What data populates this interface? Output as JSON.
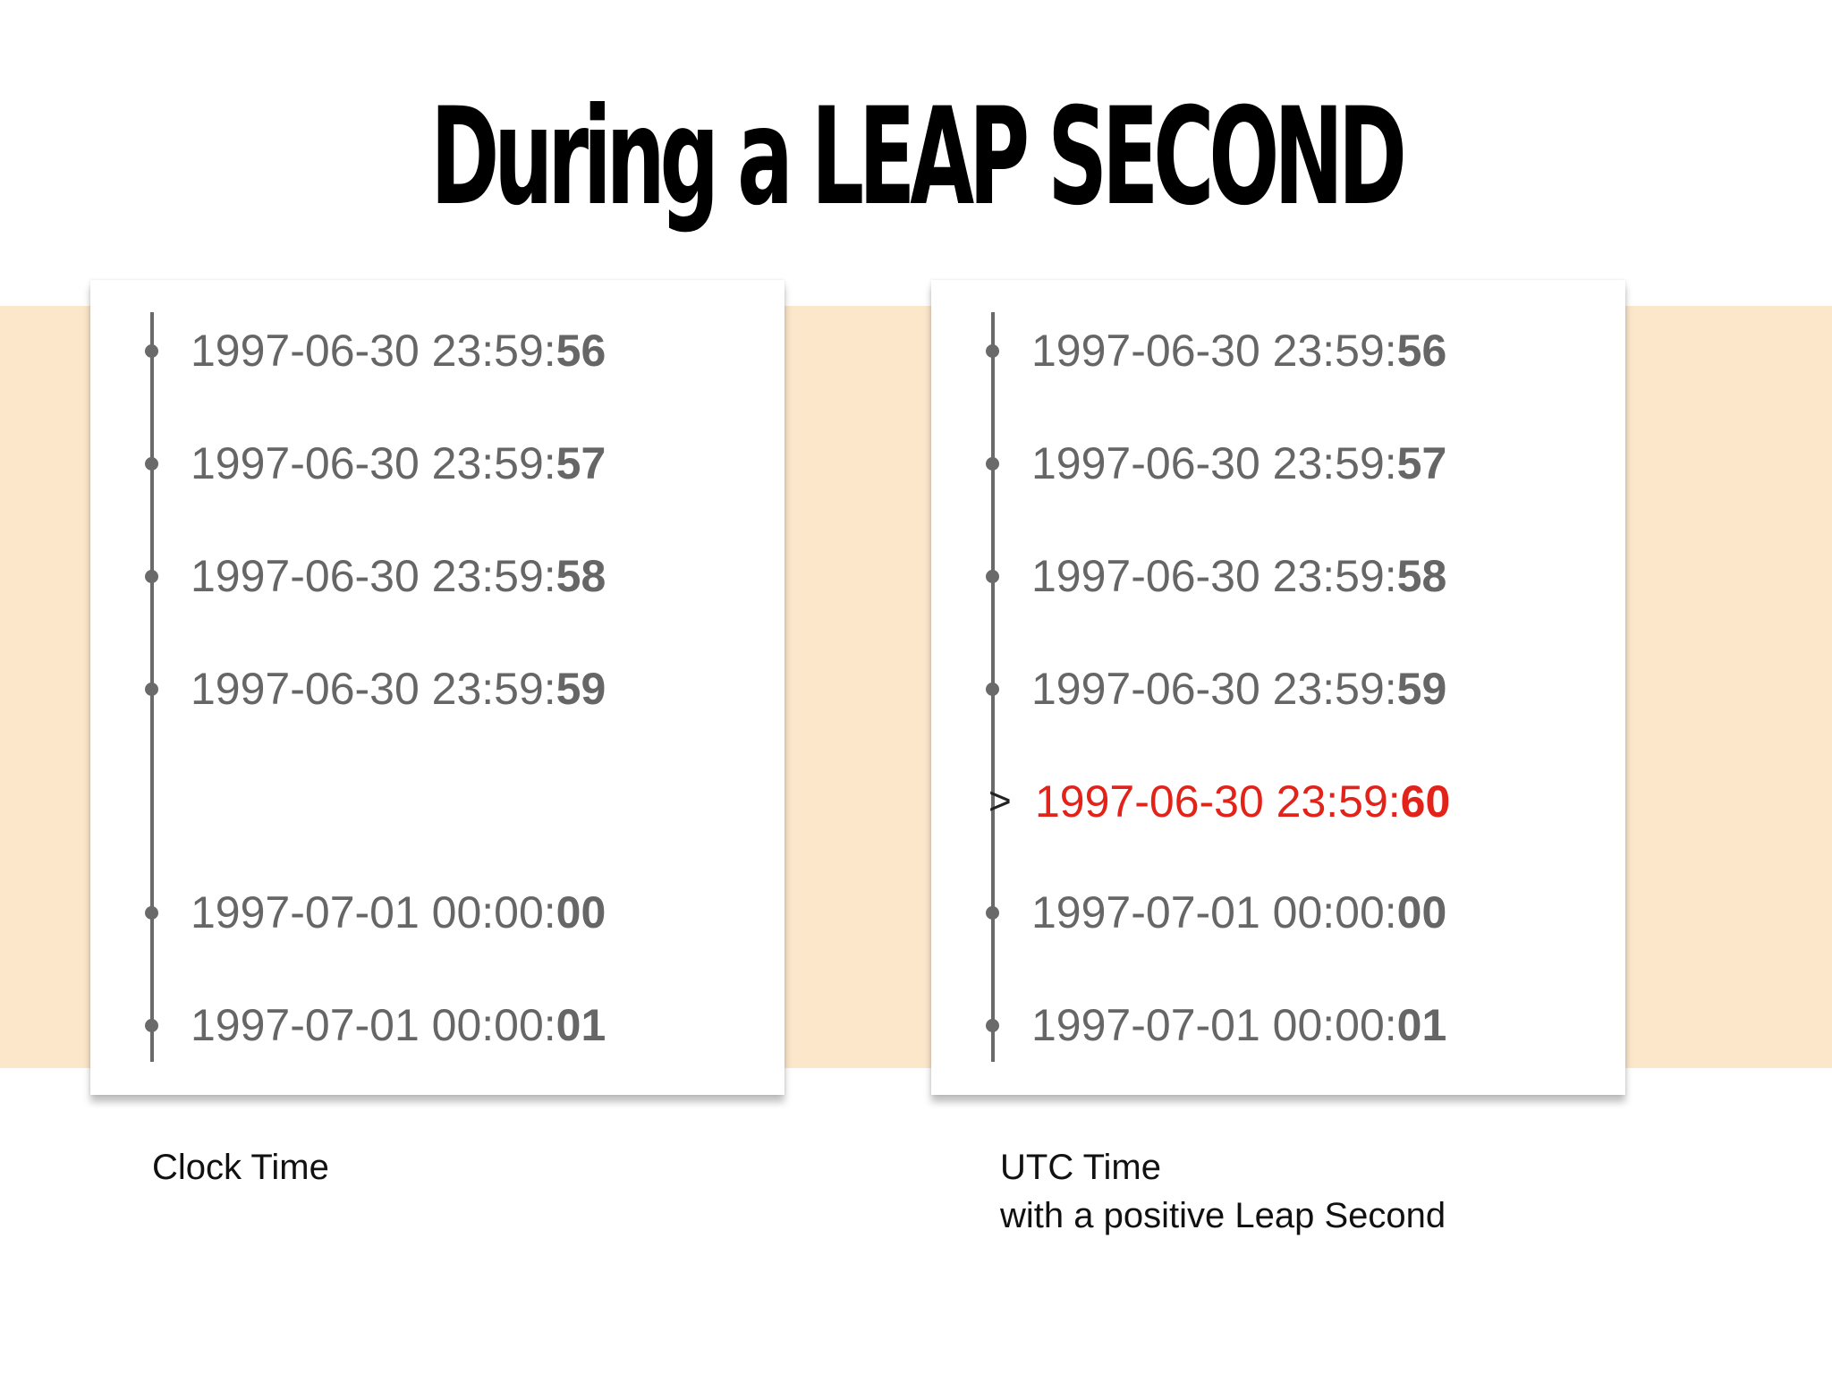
{
  "title": "During a LEAP SECOND",
  "left_panel": {
    "caption": "Clock Time",
    "rows": [
      {
        "base": "1997-06-30 23:59:",
        "sec": "56"
      },
      {
        "base": "1997-06-30 23:59:",
        "sec": "57"
      },
      {
        "base": "1997-06-30 23:59:",
        "sec": "58"
      },
      {
        "base": "1997-06-30 23:59:",
        "sec": "59"
      },
      {
        "base": "1997-07-01 00:00:",
        "sec": "00"
      },
      {
        "base": "1997-07-01 00:00:",
        "sec": "01"
      }
    ]
  },
  "right_panel": {
    "caption_line1": "UTC Time",
    "caption_line2": "with a positive Leap Second",
    "marker": ">",
    "rows": [
      {
        "base": "1997-06-30 23:59:",
        "sec": "56"
      },
      {
        "base": "1997-06-30 23:59:",
        "sec": "57"
      },
      {
        "base": "1997-06-30 23:59:",
        "sec": "58"
      },
      {
        "base": "1997-06-30 23:59:",
        "sec": "59"
      },
      {
        "base": "1997-06-30 23:59:",
        "sec": "60"
      },
      {
        "base": "1997-07-01 00:00:",
        "sec": "00"
      },
      {
        "base": "1997-07-01 00:00:",
        "sec": "01"
      }
    ]
  },
  "colors": {
    "band": "#fce7cb",
    "timeline": "#6a6a6a",
    "timestamp": "#666666",
    "leap_second": "#e2231a"
  }
}
